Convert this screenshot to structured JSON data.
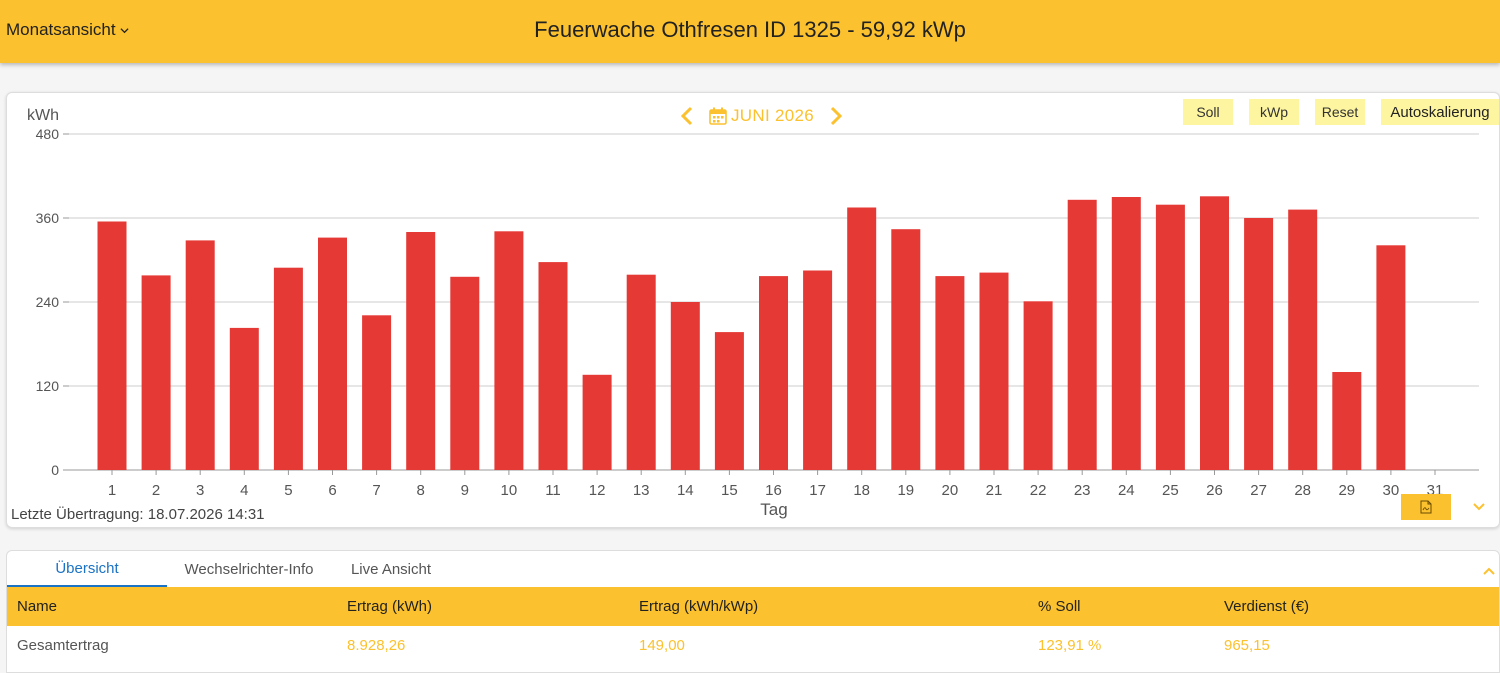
{
  "header": {
    "view_select": "Monatsansicht",
    "title": "Feuerwache Othfresen ID 1325 - 59,92 kWp"
  },
  "chart_nav": {
    "month_label": "JUNI 2026"
  },
  "toolbar": {
    "soll": "Soll",
    "kwp": "kWp",
    "reset": "Reset",
    "autoscale": "Autoskalierung"
  },
  "chart_data": {
    "type": "bar",
    "ylabel": "kWh",
    "xlabel": "Tag",
    "ylim": [
      0,
      480
    ],
    "yticks": [
      0,
      120,
      240,
      360,
      480
    ],
    "grid": true,
    "categories": [
      "1",
      "2",
      "3",
      "4",
      "5",
      "6",
      "7",
      "8",
      "9",
      "10",
      "11",
      "12",
      "13",
      "14",
      "15",
      "16",
      "17",
      "18",
      "19",
      "20",
      "21",
      "22",
      "23",
      "24",
      "25",
      "26",
      "27",
      "28",
      "29",
      "30",
      "31"
    ],
    "values": [
      355,
      278,
      328,
      203,
      289,
      332,
      221,
      340,
      276,
      341,
      297,
      136,
      279,
      240,
      197,
      277,
      285,
      375,
      344,
      277,
      282,
      241,
      386,
      390,
      379,
      391,
      360,
      372,
      140,
      321,
      null
    ],
    "bar_color": "#e53935"
  },
  "footer": {
    "last_transmission": "Letzte Übertragung: 18.07.2026 14:31"
  },
  "tabs": [
    {
      "label": "Übersicht"
    },
    {
      "label": "Wechselrichter-Info"
    },
    {
      "label": "Live Ansicht"
    }
  ],
  "table": {
    "headers": [
      "Name",
      "Ertrag (kWh)",
      "Ertrag (kWh/kWp)",
      "% Soll",
      "Verdienst (€)"
    ],
    "rows": [
      [
        "Gesamtertrag",
        "8.928,26",
        "149,00",
        "123,91 %",
        "965,15"
      ]
    ]
  },
  "colors": {
    "accent": "#fbc12f",
    "button_light": "#fef5a0",
    "bar": "#e53935",
    "tab_active": "#1a73c4"
  }
}
